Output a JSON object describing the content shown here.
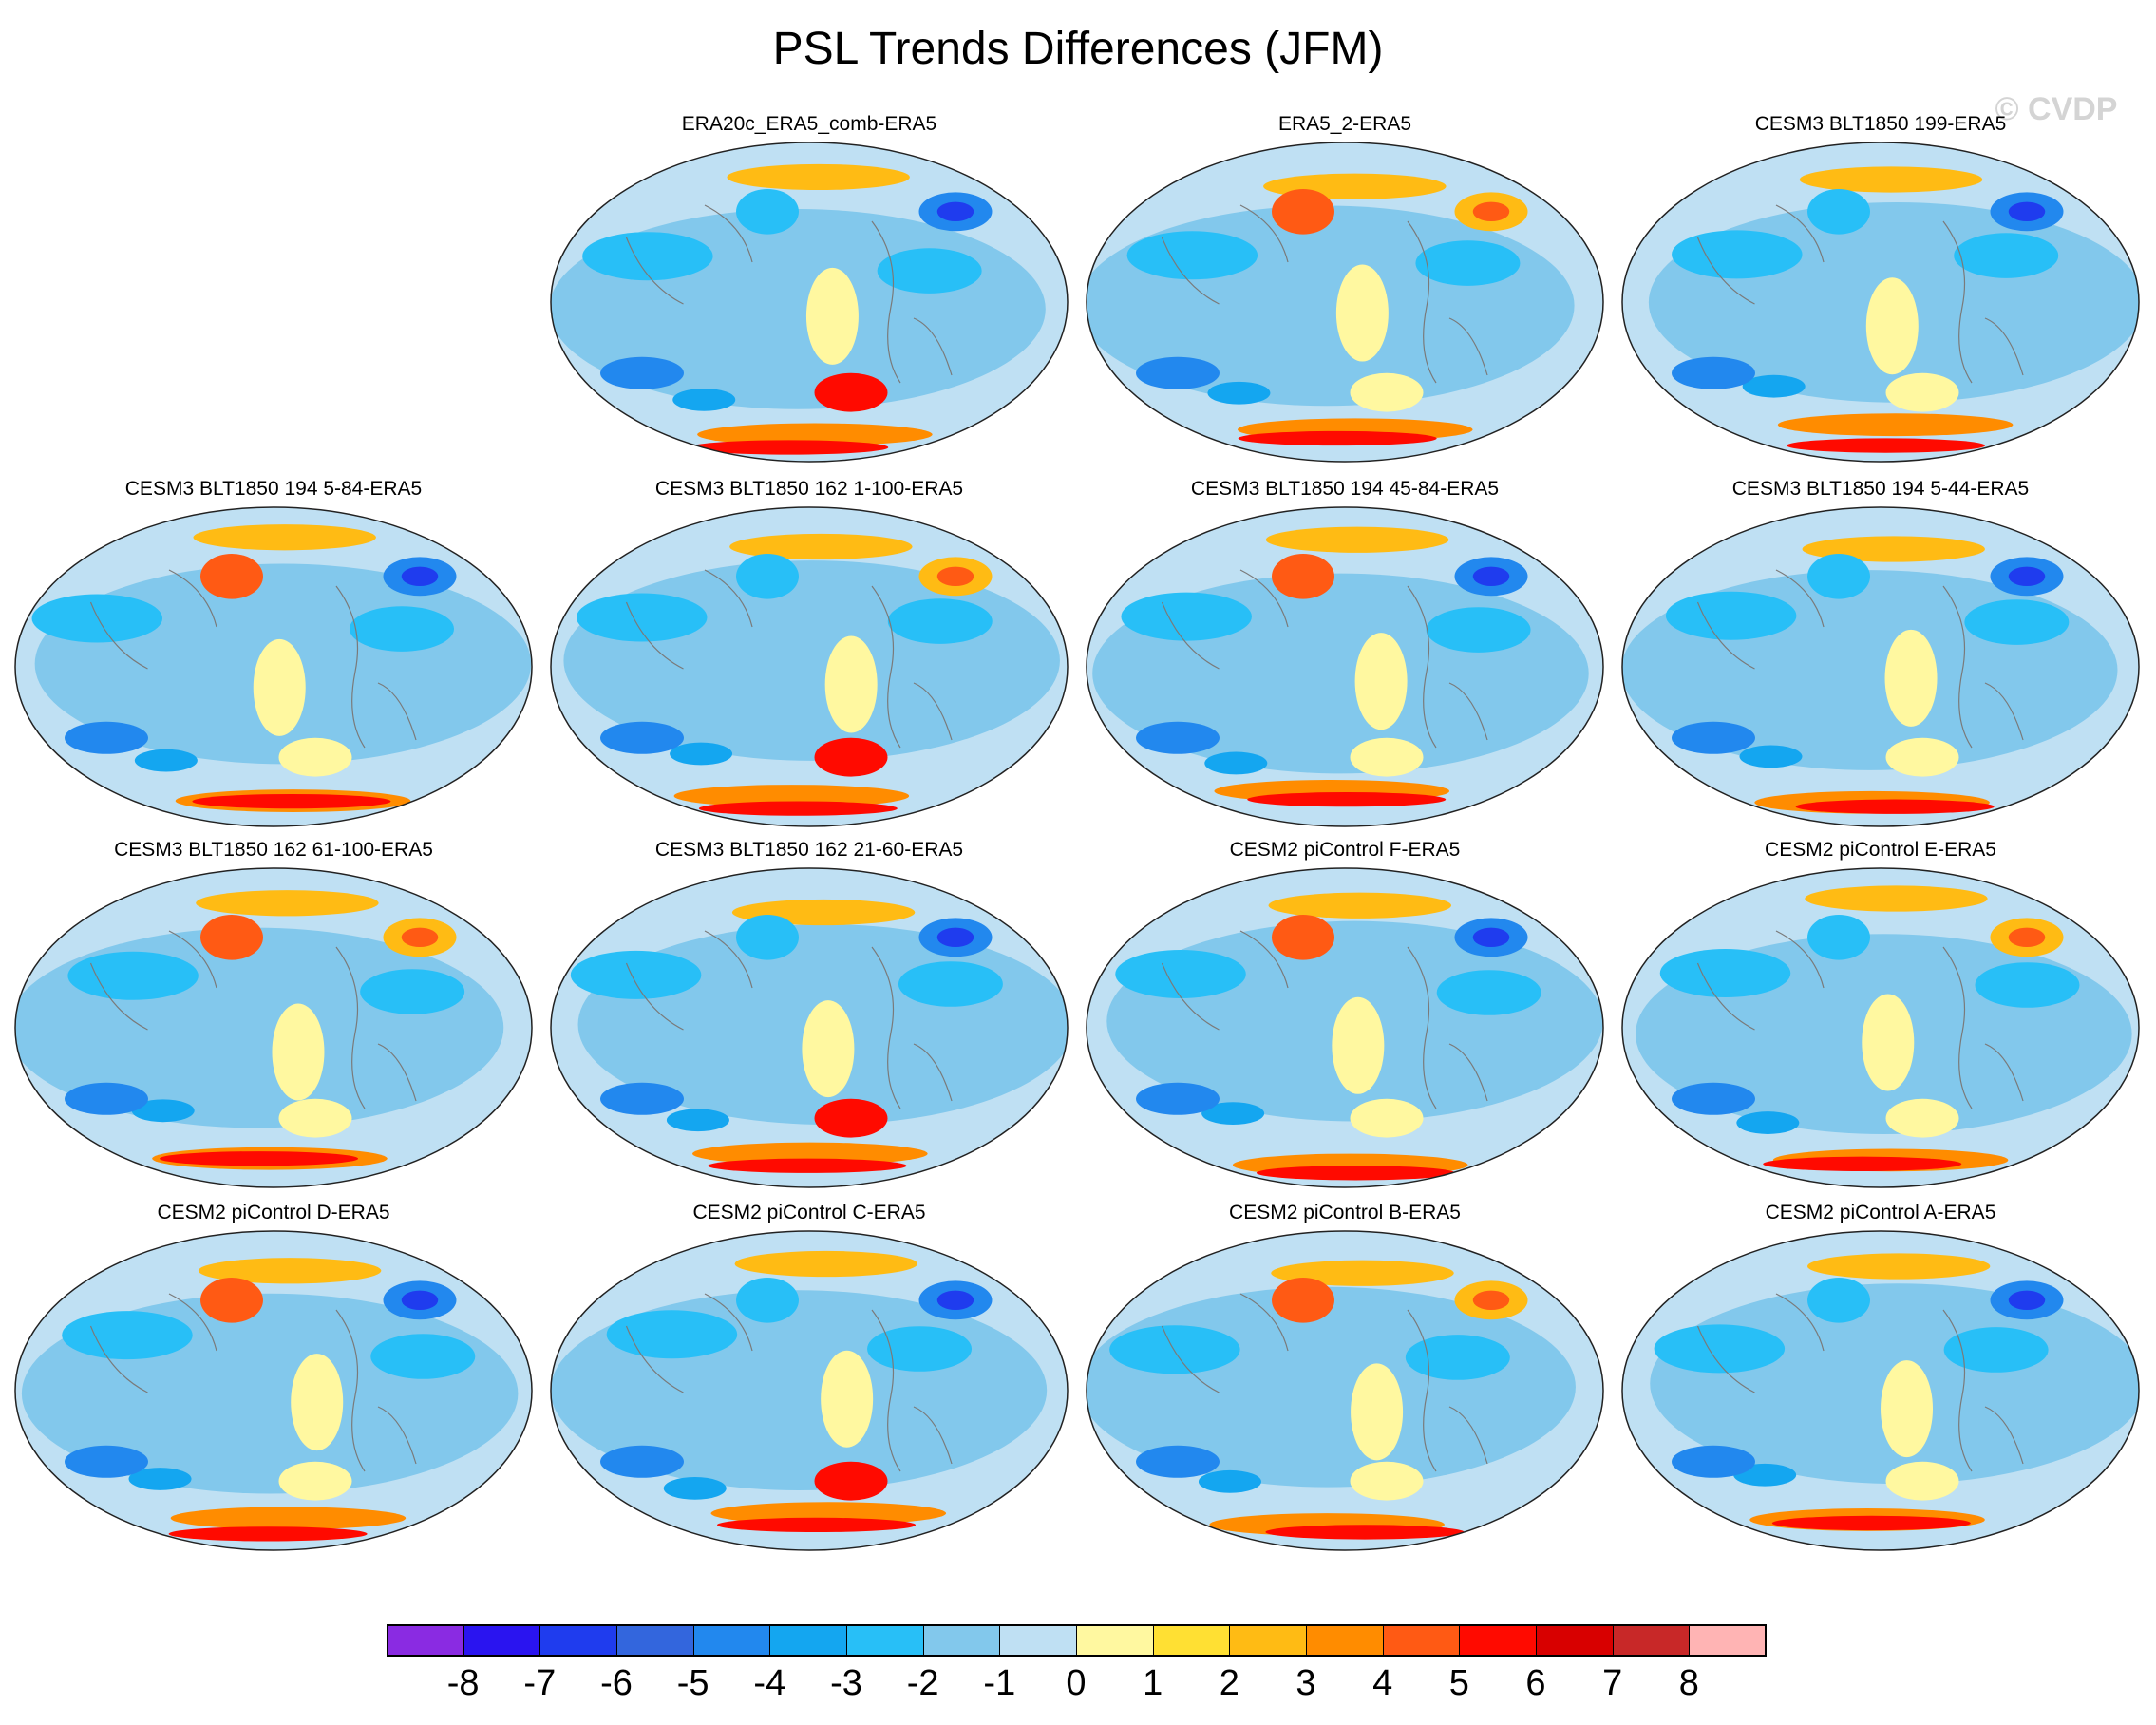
{
  "figure_title": "PSL Trends Differences (JFM)",
  "watermark": "© CVDP",
  "colorbar": {
    "colors": [
      "#8a2be2",
      "#2a14f0",
      "#1f3cee",
      "#3366dd",
      "#2288ee",
      "#14a6f0",
      "#28bff7",
      "#82c8ec",
      "#bfe0f3",
      "#fff8a0",
      "#ffe033",
      "#ffbb14",
      "#ff8c00",
      "#ff5a14",
      "#ff0a00",
      "#d80000",
      "#c82828",
      "#ffb4b4"
    ],
    "labels": [
      "-8",
      "-7",
      "-6",
      "-5",
      "-4",
      "-3",
      "-2",
      "-1",
      "0",
      "1",
      "2",
      "3",
      "4",
      "5",
      "6",
      "7",
      "8"
    ]
  },
  "panels": [
    {
      "title": "ERA20c_ERA5_comb-ERA5",
      "row": 0,
      "col": 1
    },
    {
      "title": "ERA5_2-ERA5",
      "row": 0,
      "col": 2
    },
    {
      "title": "CESM3 BLT1850 199-ERA5",
      "row": 0,
      "col": 3
    },
    {
      "title": "CESM3 BLT1850 194 5-84-ERA5",
      "row": 1,
      "col": 0
    },
    {
      "title": "CESM3 BLT1850 162 1-100-ERA5",
      "row": 1,
      "col": 1
    },
    {
      "title": "CESM3 BLT1850 194 45-84-ERA5",
      "row": 1,
      "col": 2
    },
    {
      "title": "CESM3 BLT1850 194 5-44-ERA5",
      "row": 1,
      "col": 3
    },
    {
      "title": "CESM3 BLT1850 162 61-100-ERA5",
      "row": 2,
      "col": 0
    },
    {
      "title": "CESM3 BLT1850 162 21-60-ERA5",
      "row": 2,
      "col": 1
    },
    {
      "title": "CESM2 piControl F-ERA5",
      "row": 2,
      "col": 2
    },
    {
      "title": "CESM2 piControl E-ERA5",
      "row": 2,
      "col": 3
    },
    {
      "title": "CESM2 piControl D-ERA5",
      "row": 3,
      "col": 0
    },
    {
      "title": "CESM2 piControl C-ERA5",
      "row": 3,
      "col": 1
    },
    {
      "title": "CESM2 piControl B-ERA5",
      "row": 3,
      "col": 2
    },
    {
      "title": "CESM2 piControl A-ERA5",
      "row": 3,
      "col": 3
    }
  ]
}
